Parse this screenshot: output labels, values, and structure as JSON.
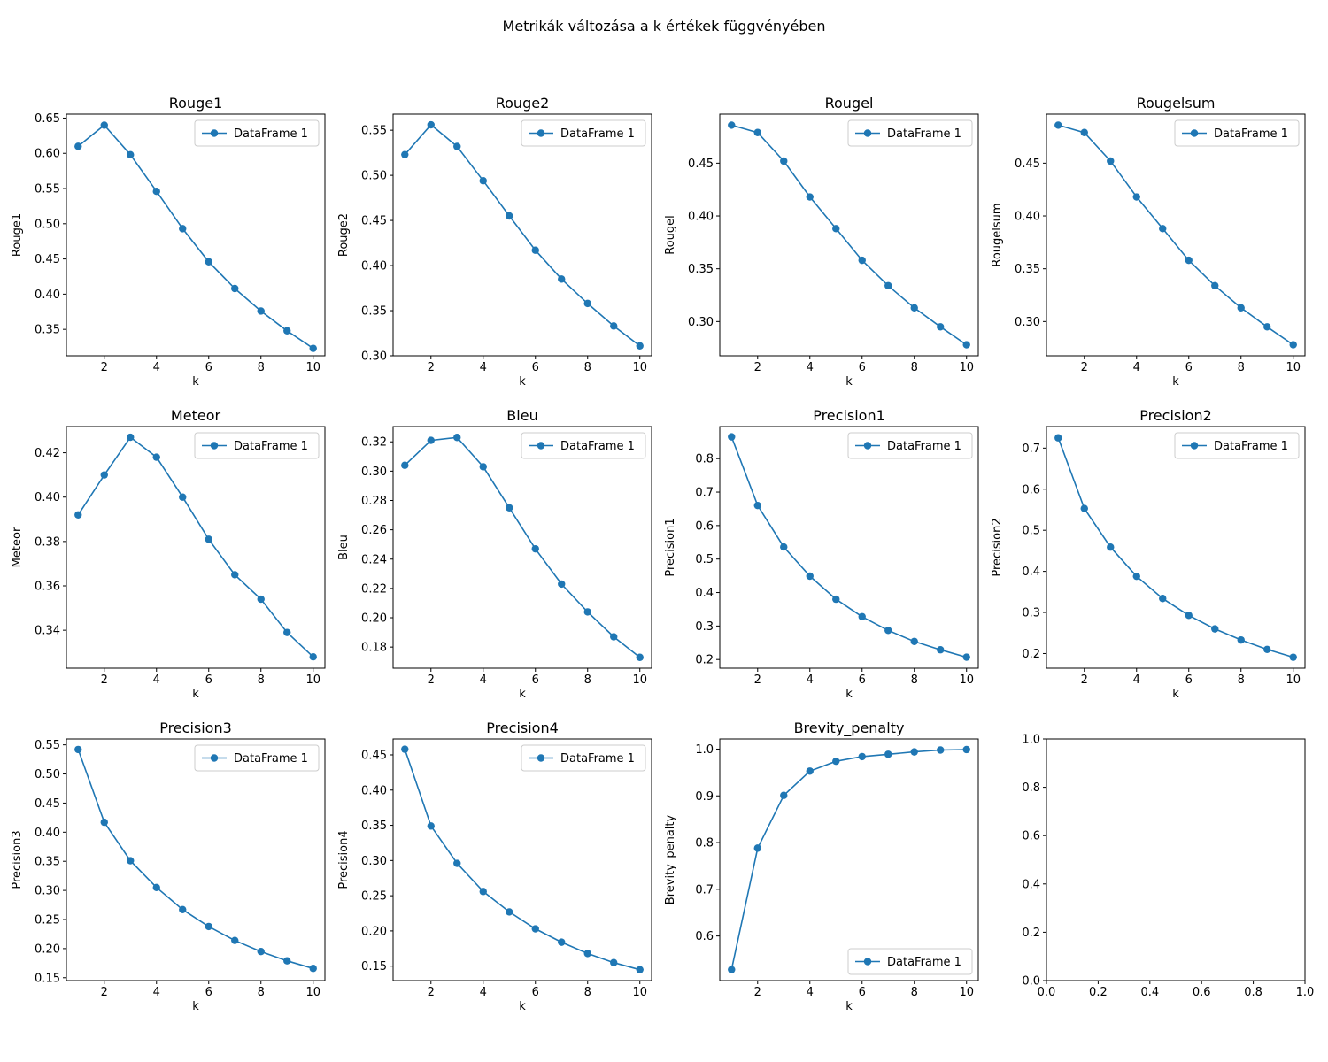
{
  "figure": {
    "suptitle": "Metrikák változása a k értékek függvényében"
  },
  "style": {
    "line_color": "#1f77b4",
    "axis_color": "#000000",
    "legend_border": "#cccccc"
  },
  "chart_data": [
    {
      "type": "line",
      "title": "Rouge1",
      "xlabel": "k",
      "ylabel": "Rouge1",
      "x": [
        1,
        2,
        3,
        4,
        5,
        6,
        7,
        8,
        9,
        10
      ],
      "series": [
        {
          "name": "DataFrame 1",
          "values": [
            0.61,
            0.64,
            0.598,
            0.546,
            0.493,
            0.446,
            0.408,
            0.376,
            0.348,
            0.323
          ]
        }
      ],
      "xlim": [
        0.55,
        10.45
      ],
      "ylim": [
        0.3125,
        0.6556
      ],
      "xticks": [
        2,
        4,
        6,
        8,
        10
      ],
      "yticks": [
        0.35,
        0.4,
        0.45,
        0.5,
        0.55,
        0.6,
        0.65
      ],
      "ytick_labels": [
        "0.35",
        "0.40",
        "0.45",
        "0.50",
        "0.55",
        "0.60",
        "0.65"
      ],
      "legend": "upper right",
      "grid": false
    },
    {
      "type": "line",
      "title": "Rouge2",
      "xlabel": "k",
      "ylabel": "Rouge2",
      "x": [
        1,
        2,
        3,
        4,
        5,
        6,
        7,
        8,
        9,
        10
      ],
      "series": [
        {
          "name": "DataFrame 1",
          "values": [
            0.523,
            0.556,
            0.532,
            0.494,
            0.455,
            0.417,
            0.385,
            0.358,
            0.333,
            0.311
          ]
        }
      ],
      "xlim": [
        0.55,
        10.45
      ],
      "ylim": [
        0.3,
        0.5678
      ],
      "xticks": [
        2,
        4,
        6,
        8,
        10
      ],
      "yticks": [
        0.3,
        0.35,
        0.4,
        0.45,
        0.5,
        0.55
      ],
      "ytick_labels": [
        "0.30",
        "0.35",
        "0.40",
        "0.45",
        "0.50",
        "0.55"
      ],
      "legend": "upper right",
      "grid": false
    },
    {
      "type": "line",
      "title": "Rougel",
      "xlabel": "k",
      "ylabel": "Rougel",
      "x": [
        1,
        2,
        3,
        4,
        5,
        6,
        7,
        8,
        9,
        10
      ],
      "series": [
        {
          "name": "DataFrame 1",
          "values": [
            0.486,
            0.479,
            0.452,
            0.418,
            0.388,
            0.358,
            0.334,
            0.313,
            0.295,
            0.278
          ]
        }
      ],
      "xlim": [
        0.55,
        10.45
      ],
      "ylim": [
        0.2676,
        0.4964
      ],
      "xticks": [
        2,
        4,
        6,
        8,
        10
      ],
      "yticks": [
        0.3,
        0.35,
        0.4,
        0.45
      ],
      "ytick_labels": [
        "0.30",
        "0.35",
        "0.40",
        "0.45"
      ],
      "legend": "upper right",
      "grid": false
    },
    {
      "type": "line",
      "title": "Rougelsum",
      "xlabel": "k",
      "ylabel": "Rougelsum",
      "x": [
        1,
        2,
        3,
        4,
        5,
        6,
        7,
        8,
        9,
        10
      ],
      "series": [
        {
          "name": "DataFrame 1",
          "values": [
            0.486,
            0.479,
            0.452,
            0.418,
            0.388,
            0.358,
            0.334,
            0.313,
            0.295,
            0.278
          ]
        }
      ],
      "xlim": [
        0.55,
        10.45
      ],
      "ylim": [
        0.2676,
        0.4964
      ],
      "xticks": [
        2,
        4,
        6,
        8,
        10
      ],
      "yticks": [
        0.3,
        0.35,
        0.4,
        0.45
      ],
      "ytick_labels": [
        "0.30",
        "0.35",
        "0.40",
        "0.45"
      ],
      "legend": "upper right",
      "grid": false
    },
    {
      "type": "line",
      "title": "Meteor",
      "xlabel": "k",
      "ylabel": "Meteor",
      "x": [
        1,
        2,
        3,
        4,
        5,
        6,
        7,
        8,
        9,
        10
      ],
      "series": [
        {
          "name": "DataFrame 1",
          "values": [
            0.392,
            0.41,
            0.427,
            0.418,
            0.4,
            0.381,
            0.365,
            0.354,
            0.339,
            0.328
          ]
        }
      ],
      "xlim": [
        0.55,
        10.45
      ],
      "ylim": [
        0.3229,
        0.4318
      ],
      "xticks": [
        2,
        4,
        6,
        8,
        10
      ],
      "yticks": [
        0.34,
        0.36,
        0.38,
        0.4,
        0.42
      ],
      "ytick_labels": [
        "0.34",
        "0.36",
        "0.38",
        "0.40",
        "0.42"
      ],
      "legend": "upper right",
      "grid": false
    },
    {
      "type": "line",
      "title": "Bleu",
      "xlabel": "k",
      "ylabel": "Bleu",
      "x": [
        1,
        2,
        3,
        4,
        5,
        6,
        7,
        8,
        9,
        10
      ],
      "series": [
        {
          "name": "DataFrame 1",
          "values": [
            0.304,
            0.321,
            0.323,
            0.303,
            0.275,
            0.247,
            0.223,
            0.204,
            0.187,
            0.173
          ]
        }
      ],
      "xlim": [
        0.55,
        10.45
      ],
      "ylim": [
        0.1656,
        0.3304
      ],
      "xticks": [
        2,
        4,
        6,
        8,
        10
      ],
      "yticks": [
        0.18,
        0.2,
        0.22,
        0.24,
        0.26,
        0.28,
        0.3,
        0.32
      ],
      "ytick_labels": [
        "0.18",
        "0.20",
        "0.22",
        "0.24",
        "0.26",
        "0.28",
        "0.30",
        "0.32"
      ],
      "legend": "upper right",
      "grid": false
    },
    {
      "type": "line",
      "title": "Precision1",
      "xlabel": "k",
      "ylabel": "Precision1",
      "x": [
        1,
        2,
        3,
        4,
        5,
        6,
        7,
        8,
        9,
        10
      ],
      "series": [
        {
          "name": "DataFrame 1",
          "values": [
            0.865,
            0.66,
            0.536,
            0.449,
            0.38,
            0.328,
            0.287,
            0.254,
            0.229,
            0.207
          ]
        }
      ],
      "xlim": [
        0.55,
        10.45
      ],
      "ylim": [
        0.1741,
        0.8957
      ],
      "xticks": [
        2,
        4,
        6,
        8,
        10
      ],
      "yticks": [
        0.2,
        0.3,
        0.4,
        0.5,
        0.6,
        0.7,
        0.8
      ],
      "ytick_labels": [
        "0.2",
        "0.3",
        "0.4",
        "0.5",
        "0.6",
        "0.7",
        "0.8"
      ],
      "legend": "upper right",
      "grid": false
    },
    {
      "type": "line",
      "title": "Precision2",
      "xlabel": "k",
      "ylabel": "Precision2",
      "x": [
        1,
        2,
        3,
        4,
        5,
        6,
        7,
        8,
        9,
        10
      ],
      "series": [
        {
          "name": "DataFrame 1",
          "values": [
            0.725,
            0.553,
            0.459,
            0.388,
            0.334,
            0.293,
            0.26,
            0.233,
            0.21,
            0.191
          ]
        }
      ],
      "xlim": [
        0.55,
        10.45
      ],
      "ylim": [
        0.1644,
        0.7524
      ],
      "xticks": [
        2,
        4,
        6,
        8,
        10
      ],
      "yticks": [
        0.2,
        0.3,
        0.4,
        0.5,
        0.6,
        0.7
      ],
      "ytick_labels": [
        "0.2",
        "0.3",
        "0.4",
        "0.5",
        "0.6",
        "0.7"
      ],
      "legend": "upper right",
      "grid": false
    },
    {
      "type": "line",
      "title": "Precision3",
      "xlabel": "k",
      "ylabel": "Precision3",
      "x": [
        1,
        2,
        3,
        4,
        5,
        6,
        7,
        8,
        9,
        10
      ],
      "series": [
        {
          "name": "DataFrame 1",
          "values": [
            0.542,
            0.417,
            0.351,
            0.305,
            0.267,
            0.238,
            0.214,
            0.195,
            0.179,
            0.166
          ]
        }
      ],
      "xlim": [
        0.55,
        10.45
      ],
      "ylim": [
        0.1451,
        0.5601
      ],
      "xticks": [
        2,
        4,
        6,
        8,
        10
      ],
      "yticks": [
        0.15,
        0.2,
        0.25,
        0.3,
        0.35,
        0.4,
        0.45,
        0.5,
        0.55
      ],
      "ytick_labels": [
        "0.15",
        "0.20",
        "0.25",
        "0.30",
        "0.35",
        "0.40",
        "0.45",
        "0.50",
        "0.55"
      ],
      "legend": "upper right",
      "grid": false
    },
    {
      "type": "line",
      "title": "Precision4",
      "xlabel": "k",
      "ylabel": "Precision4",
      "x": [
        1,
        2,
        3,
        4,
        5,
        6,
        7,
        8,
        9,
        10
      ],
      "series": [
        {
          "name": "DataFrame 1",
          "values": [
            0.458,
            0.349,
            0.296,
            0.256,
            0.227,
            0.203,
            0.184,
            0.168,
            0.155,
            0.145
          ]
        }
      ],
      "xlim": [
        0.55,
        10.45
      ],
      "ylim": [
        0.1295,
        0.4726
      ],
      "xticks": [
        2,
        4,
        6,
        8,
        10
      ],
      "yticks": [
        0.15,
        0.2,
        0.25,
        0.3,
        0.35,
        0.4,
        0.45
      ],
      "ytick_labels": [
        "0.15",
        "0.20",
        "0.25",
        "0.30",
        "0.35",
        "0.40",
        "0.45"
      ],
      "legend": "upper right",
      "grid": false
    },
    {
      "type": "line",
      "title": "Brevity_penalty",
      "xlabel": "k",
      "ylabel": "Brevity_penalty",
      "x": [
        1,
        2,
        3,
        4,
        5,
        6,
        7,
        8,
        9,
        10
      ],
      "series": [
        {
          "name": "DataFrame 1",
          "values": [
            0.528,
            0.788,
            0.901,
            0.953,
            0.974,
            0.984,
            0.989,
            0.994,
            0.998,
            0.999
          ]
        }
      ],
      "xlim": [
        0.55,
        10.45
      ],
      "ylim": [
        0.5046,
        1.0217
      ],
      "xticks": [
        2,
        4,
        6,
        8,
        10
      ],
      "yticks": [
        0.6,
        0.7,
        0.8,
        0.9,
        1.0
      ],
      "ytick_labels": [
        "0.6",
        "0.7",
        "0.8",
        "0.9",
        "1.0"
      ],
      "legend": "lower right",
      "grid": false
    },
    {
      "type": "line",
      "title": "",
      "xlabel": "",
      "ylabel": "",
      "x": [],
      "series": [],
      "xlim": [
        0,
        1
      ],
      "ylim": [
        0,
        1
      ],
      "xticks": [
        0,
        0.2,
        0.4,
        0.6,
        0.8,
        1.0
      ],
      "xtick_labels": [
        "0.0",
        "0.2",
        "0.4",
        "0.6",
        "0.8",
        "1.0"
      ],
      "yticks": [
        0,
        0.2,
        0.4,
        0.6,
        0.8,
        1.0
      ],
      "ytick_labels": [
        "0.0",
        "0.2",
        "0.4",
        "0.6",
        "0.8",
        "1.0"
      ],
      "legend": "none",
      "grid": false
    }
  ]
}
